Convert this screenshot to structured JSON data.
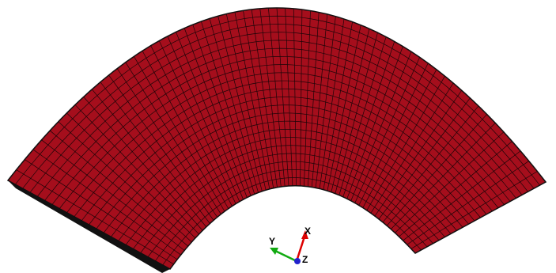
{
  "triad": {
    "x": "X",
    "y": "Y",
    "z": "Z"
  }
}
